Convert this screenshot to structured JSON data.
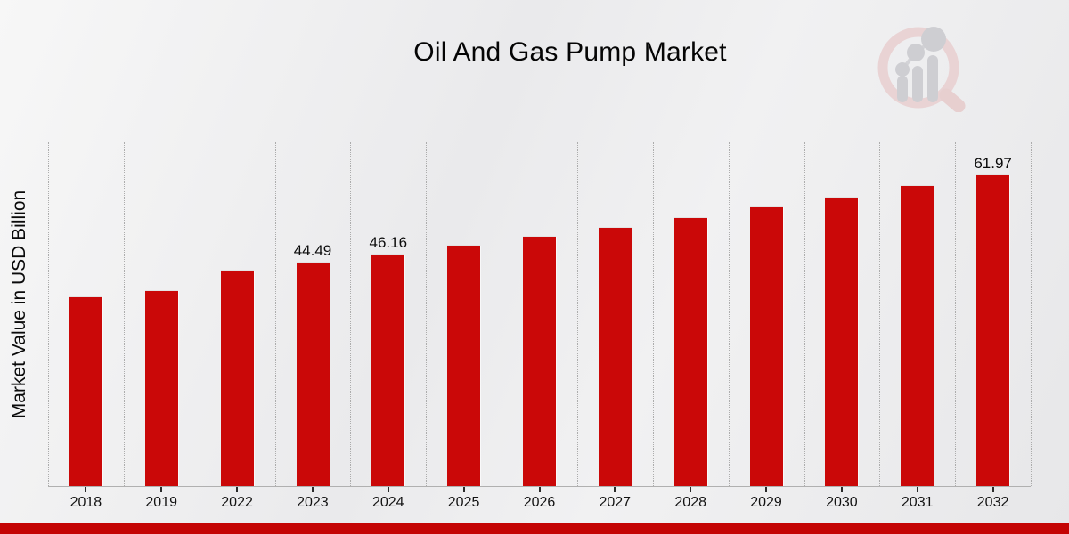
{
  "title": "Oil And Gas Pump Market",
  "ylabel": "Market Value in USD Billion",
  "colors": {
    "bar": "#ca0808",
    "bottom_strip": "#c40404",
    "logo_pink": "#e9cfd0",
    "logo_gray": "#c9c9ce"
  },
  "chart_data": {
    "type": "bar",
    "title": "Oil And Gas Pump Market",
    "xlabel": "",
    "ylabel": "Market Value in USD Billion",
    "categories": [
      "2018",
      "2019",
      "2022",
      "2023",
      "2024",
      "2025",
      "2026",
      "2027",
      "2028",
      "2029",
      "2030",
      "2031",
      "2032"
    ],
    "values": [
      37.7,
      38.8,
      42.9,
      44.49,
      46.16,
      47.89,
      49.69,
      51.55,
      53.49,
      55.49,
      57.58,
      59.74,
      61.97
    ],
    "data_labels": {
      "2023": "44.49",
      "2024": "46.16",
      "2032": "61.97"
    },
    "ylim": [
      0,
      68.5
    ],
    "grid": "vertical-dotted",
    "legend": "none",
    "bar_color": "#ca0808"
  }
}
